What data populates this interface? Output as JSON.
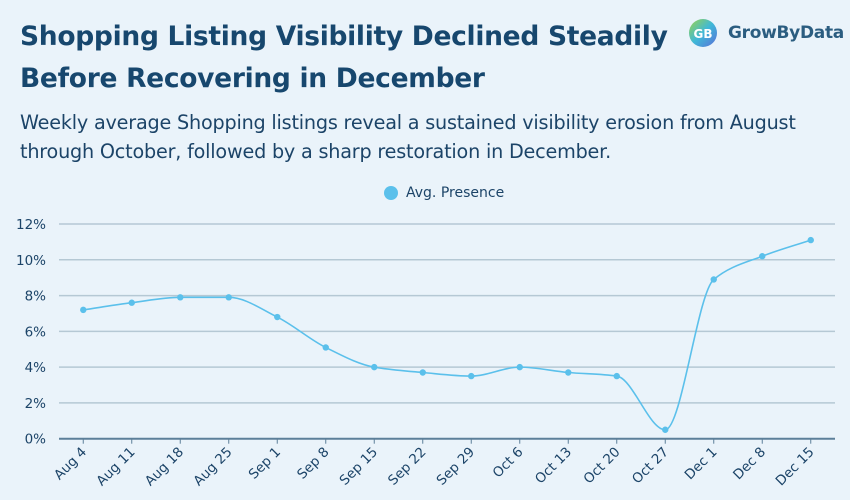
{
  "header": {
    "title": "Shopping Listing Visibility Declined Steadily Before Recovering in December",
    "subtitle": "Weekly average Shopping listings reveal a sustained visibility erosion from August through October, followed by a sharp restoration in December.",
    "logo_text": "GrowByData"
  },
  "chart_data": {
    "type": "line",
    "title": "Shopping Listing Visibility Declined Steadily Before Recovering in December",
    "xlabel": "",
    "ylabel": "",
    "categories": [
      "Aug 4",
      "Aug 11",
      "Aug 18",
      "Aug 25",
      "Sep 1",
      "Sep 8",
      "Sep 15",
      "Sep 22",
      "Sep 29",
      "Oct 6",
      "Oct 13",
      "Oct 20",
      "Oct 27",
      "Dec 1",
      "Dec 8",
      "Dec 15"
    ],
    "series": [
      {
        "name": "Avg. Presence",
        "color": "#5bc0eb",
        "values": [
          7.2,
          7.6,
          7.9,
          7.9,
          6.8,
          5.1,
          4.0,
          3.7,
          3.5,
          4.0,
          3.7,
          3.5,
          0.5,
          8.9,
          10.2,
          11.1
        ]
      }
    ],
    "ylim": [
      0,
      12
    ],
    "yticks": [
      "0%",
      "2%",
      "4%",
      "6%",
      "8%",
      "10%",
      "12%"
    ],
    "ytick_values": [
      0,
      2,
      4,
      6,
      8,
      10,
      12
    ],
    "grid": true,
    "legend": "top-center",
    "curve": "smooth"
  }
}
